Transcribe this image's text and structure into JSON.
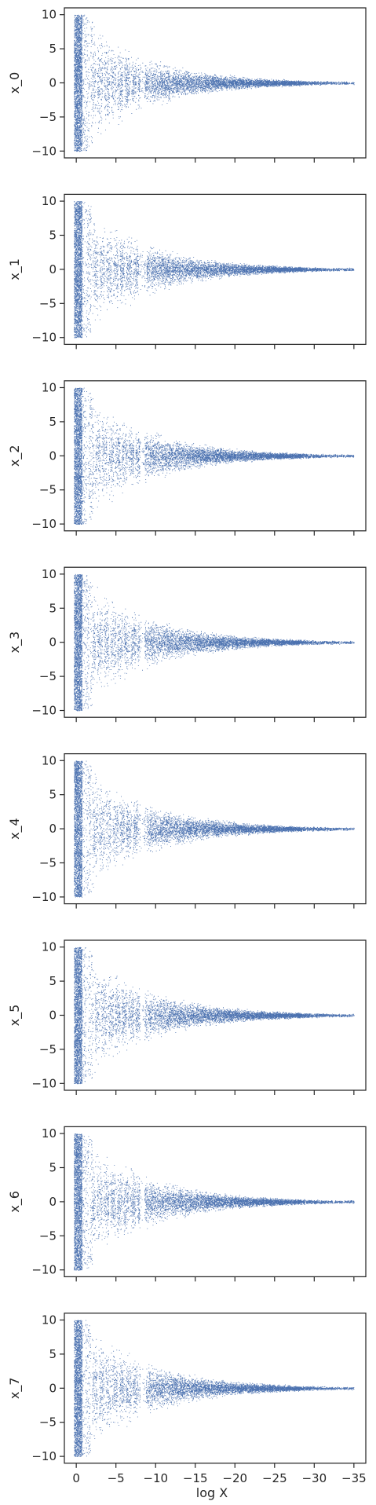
{
  "chart_data": {
    "type": "scatter",
    "layout": "8 vertically stacked panels with shared x-axis",
    "xlabel": "log X",
    "x_axis_reversed": true,
    "xlim": [
      1.5,
      -36.5
    ],
    "ylim": [
      -11,
      11
    ],
    "x_ticks": [
      0,
      -5,
      -10,
      -15,
      -20,
      -25,
      -30,
      -35
    ],
    "x_tick_labels": [
      "0",
      "−5",
      "−10",
      "−15",
      "−20",
      "−25",
      "−30",
      "−35"
    ],
    "y_ticks": [
      10,
      5,
      0,
      -5,
      -10
    ],
    "y_tick_labels": [
      "10",
      "5",
      "0",
      "−5",
      "−10"
    ],
    "marker_color": "#4c72b0",
    "grid": false,
    "legend": "none",
    "description_of_shape": "dense scatter that is spread over y in [-10, 10] near x = 0 and narrows toward 0 as x decreases, tapering to ~|y|<0.3 near x = -31, with sparse points out to about x = -35",
    "panels": [
      {
        "ylabel": "x_0"
      },
      {
        "ylabel": "x_1"
      },
      {
        "ylabel": "x_2"
      },
      {
        "ylabel": "x_3"
      },
      {
        "ylabel": "x_4"
      },
      {
        "ylabel": "x_5"
      },
      {
        "ylabel": "x_6"
      },
      {
        "ylabel": "x_7"
      }
    ]
  }
}
